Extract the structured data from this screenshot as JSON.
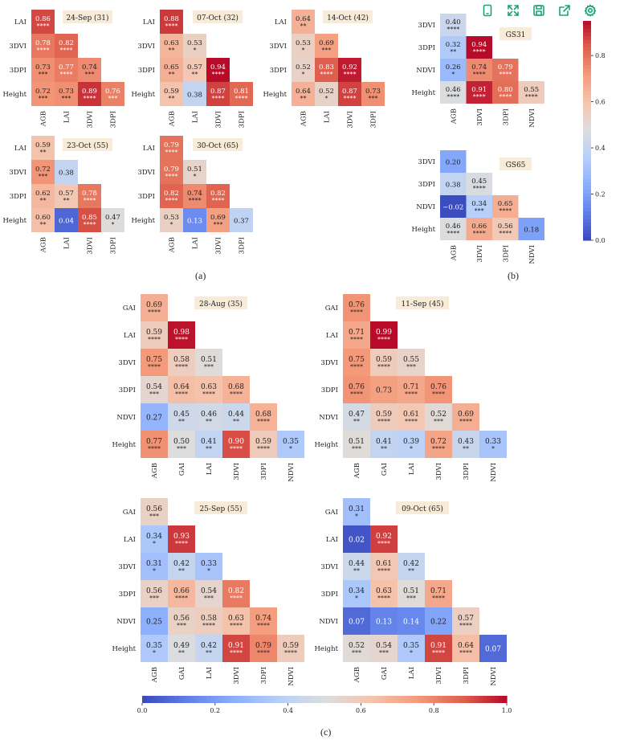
{
  "toolbar": {
    "items": [
      {
        "name": "tablet-icon"
      },
      {
        "name": "expand-icon"
      },
      {
        "name": "save-icon"
      },
      {
        "name": "share-icon"
      },
      {
        "name": "settings-icon"
      }
    ]
  },
  "panel_labels": {
    "a": "(a)",
    "b": "(b)",
    "c": "(c)"
  },
  "colorbar_right": {
    "ticks": [
      "0.0",
      "0.2",
      "0.4",
      "0.6",
      "0.8"
    ],
    "min": 0,
    "max": 0.95
  },
  "colorbar_bottom": {
    "ticks": [
      "0.0",
      "0.2",
      "0.4",
      "0.6",
      "0.8",
      "1.0"
    ],
    "min": 0,
    "max": 1
  },
  "chart_data": [
    {
      "type": "heatmap",
      "id": "a1",
      "title": "24-Sep (31)",
      "row_labels": [
        "LAI",
        "3DVI",
        "3DPI",
        "Height"
      ],
      "col_labels": [
        "AGB",
        "LAI",
        "3DVI",
        "3DPI"
      ],
      "values": [
        [
          0.86
        ],
        [
          0.78,
          0.82
        ],
        [
          0.73,
          0.77,
          0.74
        ],
        [
          0.72,
          0.73,
          0.89,
          0.76
        ]
      ],
      "stars": [
        [
          "****"
        ],
        [
          "****",
          "****"
        ],
        [
          "***",
          "****",
          "***"
        ],
        [
          "***",
          "***",
          "****",
          "***"
        ]
      ]
    },
    {
      "type": "heatmap",
      "id": "a2",
      "title": "07-Oct (32)",
      "row_labels": [
        "LAI",
        "3DVI",
        "3DPI",
        "Height"
      ],
      "col_labels": [
        "AGB",
        "LAI",
        "3DVI",
        "3DPI"
      ],
      "values": [
        [
          0.88
        ],
        [
          0.63,
          0.53
        ],
        [
          0.65,
          0.57,
          0.94
        ],
        [
          0.59,
          0.38,
          0.87,
          0.81
        ]
      ],
      "stars": [
        [
          "****"
        ],
        [
          "**",
          "*"
        ],
        [
          "**",
          "**",
          "****"
        ],
        [
          "**",
          "",
          "****",
          "****"
        ]
      ]
    },
    {
      "type": "heatmap",
      "id": "a3",
      "title": "14-Oct (42)",
      "row_labels": [
        "LAI",
        "3DVI",
        "3DPI",
        "Height"
      ],
      "col_labels": [
        "AGB",
        "LAI",
        "3DVI",
        "3DPI"
      ],
      "values": [
        [
          0.64
        ],
        [
          0.53,
          0.69
        ],
        [
          0.52,
          0.83,
          0.92
        ],
        [
          0.64,
          0.52,
          0.87,
          0.73
        ]
      ],
      "stars": [
        [
          "**"
        ],
        [
          "*",
          "***"
        ],
        [
          "*",
          "****",
          "****"
        ],
        [
          "**",
          "*",
          "****",
          "***"
        ]
      ]
    },
    {
      "type": "heatmap",
      "id": "a4",
      "title": "23-Oct (55)",
      "row_labels": [
        "LAI",
        "3DVI",
        "3DPI",
        "Height"
      ],
      "col_labels": [
        "AGB",
        "LAI",
        "3DVI",
        "3DPI"
      ],
      "values": [
        [
          0.59
        ],
        [
          0.72,
          0.38
        ],
        [
          0.62,
          0.57,
          0.78
        ],
        [
          0.6,
          0.04,
          0.85,
          0.47
        ]
      ],
      "stars": [
        [
          "**"
        ],
        [
          "***",
          ""
        ],
        [
          "**",
          "**",
          "****"
        ],
        [
          "**",
          "",
          "****",
          "*"
        ]
      ]
    },
    {
      "type": "heatmap",
      "id": "a5",
      "title": "30-Oct (65)",
      "row_labels": [
        "LAI",
        "3DVI",
        "3DPI",
        "Height"
      ],
      "col_labels": [
        "AGB",
        "LAI",
        "3DVI",
        "3DPI"
      ],
      "values": [
        [
          0.79
        ],
        [
          0.79,
          0.51
        ],
        [
          0.82,
          0.74,
          0.82
        ],
        [
          0.53,
          0.13,
          0.69,
          0.37
        ]
      ],
      "stars": [
        [
          "****"
        ],
        [
          "****",
          "*"
        ],
        [
          "****",
          "****",
          "****"
        ],
        [
          "*",
          "",
          "***",
          ""
        ]
      ]
    },
    {
      "type": "heatmap",
      "id": "b1",
      "title": "GS31",
      "row_labels": [
        "3DVI",
        "3DPI",
        "NDVI",
        "Height"
      ],
      "col_labels": [
        "AGB",
        "3DVI",
        "3DPI",
        "NDVI"
      ],
      "values": [
        [
          0.4
        ],
        [
          0.32,
          0.94
        ],
        [
          0.26,
          0.74,
          0.79
        ],
        [
          0.46,
          0.91,
          0.8,
          0.55
        ]
      ],
      "stars": [
        [
          "****"
        ],
        [
          "**",
          "****"
        ],
        [
          "*",
          "****",
          "****"
        ],
        [
          "****",
          "****",
          "****",
          "****"
        ]
      ]
    },
    {
      "type": "heatmap",
      "id": "b2",
      "title": "GS65",
      "row_labels": [
        "3DVI",
        "3DPI",
        "NDVI",
        "Height"
      ],
      "col_labels": [
        "AGB",
        "3DVI",
        "3DPI",
        "NDVI"
      ],
      "values": [
        [
          0.2
        ],
        [
          0.38,
          0.45
        ],
        [
          -0.02,
          0.34,
          0.65
        ],
        [
          0.46,
          0.66,
          0.56,
          0.18
        ]
      ],
      "stars": [
        [
          ""
        ],
        [
          "",
          "****"
        ],
        [
          "",
          "***",
          "****"
        ],
        [
          "****",
          "****",
          "****",
          ""
        ]
      ]
    },
    {
      "type": "heatmap",
      "id": "c1",
      "title": "28-Aug (35)",
      "row_labels": [
        "GAI",
        "LAI",
        "3DVI",
        "3DPI",
        "NDVI",
        "Height"
      ],
      "col_labels": [
        "AGB",
        "GAI",
        "LAI",
        "3DVI",
        "3DPI",
        "NDVI"
      ],
      "values": [
        [
          0.69
        ],
        [
          0.59,
          0.98
        ],
        [
          0.75,
          0.58,
          0.51
        ],
        [
          0.54,
          0.64,
          0.63,
          0.68
        ],
        [
          0.27,
          0.45,
          0.46,
          0.44,
          0.68
        ],
        [
          0.77,
          0.5,
          0.41,
          0.9,
          0.59,
          0.35
        ]
      ],
      "stars": [
        [
          "****"
        ],
        [
          "****",
          "****"
        ],
        [
          "****",
          "****",
          "***"
        ],
        [
          "***",
          "****",
          "****",
          "****"
        ],
        [
          "",
          "**",
          "**",
          "**",
          "****"
        ],
        [
          "****",
          "***",
          "**",
          "****",
          "****",
          "*"
        ]
      ]
    },
    {
      "type": "heatmap",
      "id": "c2",
      "title": "11-Sep (45)",
      "row_labels": [
        "GAI",
        "LAI",
        "3DVI",
        "3DPI",
        "NDVI",
        "Height"
      ],
      "col_labels": [
        "AGB",
        "GAI",
        "LAI",
        "3DVI",
        "3DPI",
        "NDVI"
      ],
      "values": [
        [
          0.76
        ],
        [
          0.71,
          0.99
        ],
        [
          0.75,
          0.59,
          0.55
        ],
        [
          0.76,
          0.73,
          0.71,
          0.76
        ],
        [
          0.47,
          0.59,
          0.61,
          0.52,
          0.69
        ],
        [
          0.51,
          0.41,
          0.39,
          0.72,
          0.43,
          0.33
        ]
      ],
      "stars": [
        [
          "****"
        ],
        [
          "****",
          "****"
        ],
        [
          "****",
          "****",
          "***"
        ],
        [
          "****",
          "",
          "****",
          "****"
        ],
        [
          "**",
          "****",
          "****",
          "***",
          "****"
        ],
        [
          "***",
          "**",
          "*",
          "****",
          "**",
          "*"
        ]
      ]
    },
    {
      "type": "heatmap",
      "id": "c3",
      "title": "25-Sep (55)",
      "row_labels": [
        "GAI",
        "LAI",
        "3DVI",
        "3DPI",
        "NDVI",
        "Height"
      ],
      "col_labels": [
        "AGB",
        "GAI",
        "LAI",
        "3DVI",
        "3DPI",
        "NDVI"
      ],
      "values": [
        [
          0.56
        ],
        [
          0.34,
          0.93
        ],
        [
          0.31,
          0.42,
          0.33
        ],
        [
          0.56,
          0.66,
          0.54,
          0.82
        ],
        [
          0.25,
          0.56,
          0.58,
          0.63,
          0.74
        ],
        [
          0.35,
          0.49,
          0.42,
          0.91,
          0.79,
          0.59
        ]
      ],
      "stars": [
        [
          "***"
        ],
        [
          "*",
          "****"
        ],
        [
          "*",
          "**",
          "*"
        ],
        [
          "***",
          "****",
          "***",
          "****"
        ],
        [
          "",
          "***",
          "****",
          "****",
          "****"
        ],
        [
          "*",
          "**",
          "**",
          "****",
          "****",
          "****"
        ]
      ]
    },
    {
      "type": "heatmap",
      "id": "c4",
      "title": "09-Oct (65)",
      "row_labels": [
        "GAI",
        "LAI",
        "3DVI",
        "3DPI",
        "NDVI",
        "Height"
      ],
      "col_labels": [
        "AGB",
        "GAI",
        "LAI",
        "3DVI",
        "3DPI",
        "NDVI"
      ],
      "values": [
        [
          0.31
        ],
        [
          0.02,
          0.92
        ],
        [
          0.44,
          0.61,
          0.42
        ],
        [
          0.34,
          0.63,
          0.51,
          0.71
        ],
        [
          0.07,
          0.13,
          0.14,
          0.22,
          0.57
        ],
        [
          0.52,
          0.54,
          0.35,
          0.91,
          0.64,
          0.07
        ]
      ],
      "stars": [
        [
          "*"
        ],
        [
          "",
          "****"
        ],
        [
          "**",
          "****",
          "**"
        ],
        [
          "*",
          "****",
          "***",
          "****"
        ],
        [
          "",
          "",
          "",
          "",
          "****"
        ],
        [
          "***",
          "***",
          "*",
          "****",
          "****",
          ""
        ]
      ]
    }
  ]
}
